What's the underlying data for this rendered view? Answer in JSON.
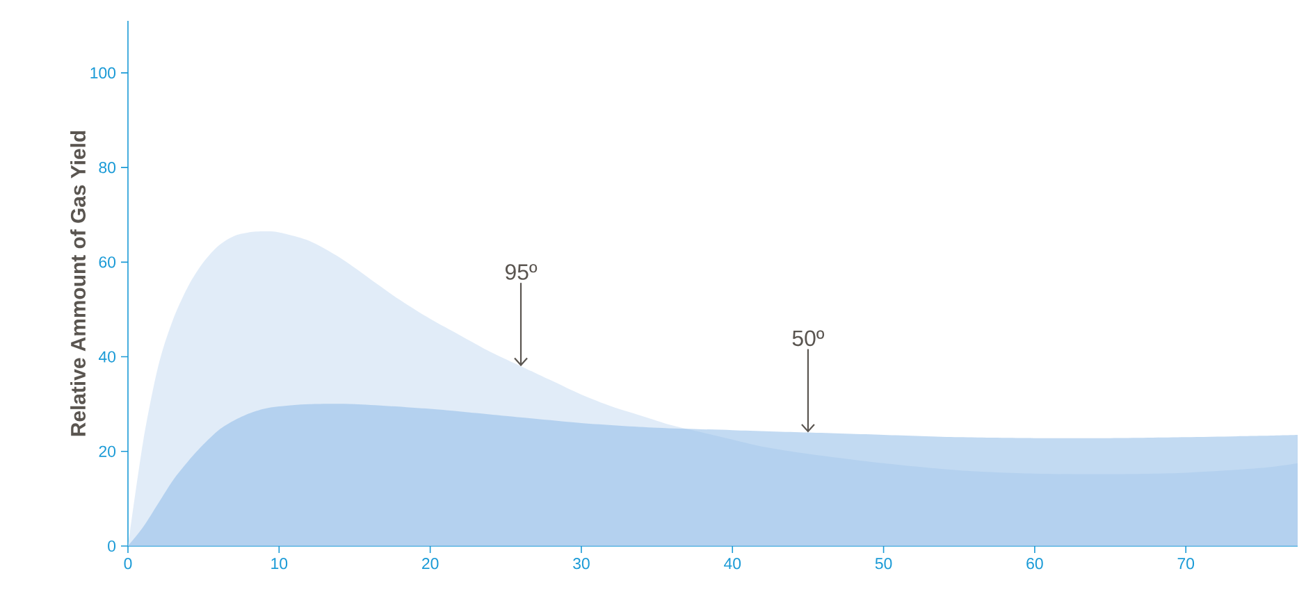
{
  "chart_data": {
    "type": "area",
    "ylabel": "Relative Ammount of Gas Yield",
    "xlim": [
      0,
      77.4
    ],
    "ylim": [
      0,
      111
    ],
    "xticks": [
      0,
      10,
      20,
      30,
      40,
      50,
      60,
      70
    ],
    "yticks": [
      0,
      20,
      40,
      60,
      80,
      100
    ],
    "grid": false,
    "series": [
      {
        "color": "#c9ddf3",
        "x": [
          0,
          1,
          2,
          3,
          4,
          5,
          6,
          7,
          8,
          9,
          10,
          12,
          14,
          16,
          18,
          20,
          22,
          24,
          26,
          28,
          30,
          32,
          34,
          36,
          38,
          40,
          42,
          45,
          50,
          55,
          60,
          65,
          70,
          75,
          77.4
        ],
        "values": [
          0,
          22,
          38,
          48,
          55,
          60,
          63.5,
          65.5,
          66.3,
          66.5,
          66.3,
          64.5,
          61,
          56.5,
          52,
          48,
          44.5,
          41,
          38,
          35,
          32,
          29.5,
          27.5,
          25.5,
          24,
          22.5,
          21,
          19.5,
          17.5,
          16,
          15.3,
          15.2,
          15.5,
          16.5,
          17.5
        ]
      },
      {
        "color": "#8fbce8",
        "x": [
          0,
          1,
          2,
          3,
          4,
          5,
          6,
          7,
          8,
          9,
          10,
          12,
          15,
          20,
          25,
          30,
          35,
          40,
          45,
          50,
          55,
          60,
          65,
          70,
          75,
          77.4
        ],
        "values": [
          0,
          4,
          9,
          14,
          18,
          21.5,
          24.5,
          26.5,
          28,
          29,
          29.5,
          30,
          30,
          29,
          27.5,
          26,
          25,
          24.5,
          24,
          23.5,
          23,
          22.8,
          22.8,
          23,
          23.3,
          23.5
        ]
      }
    ],
    "annotations": [
      {
        "text": "95º",
        "x": 26,
        "y": 38
      },
      {
        "text": "50º",
        "x": 45,
        "y": 24
      }
    ]
  }
}
